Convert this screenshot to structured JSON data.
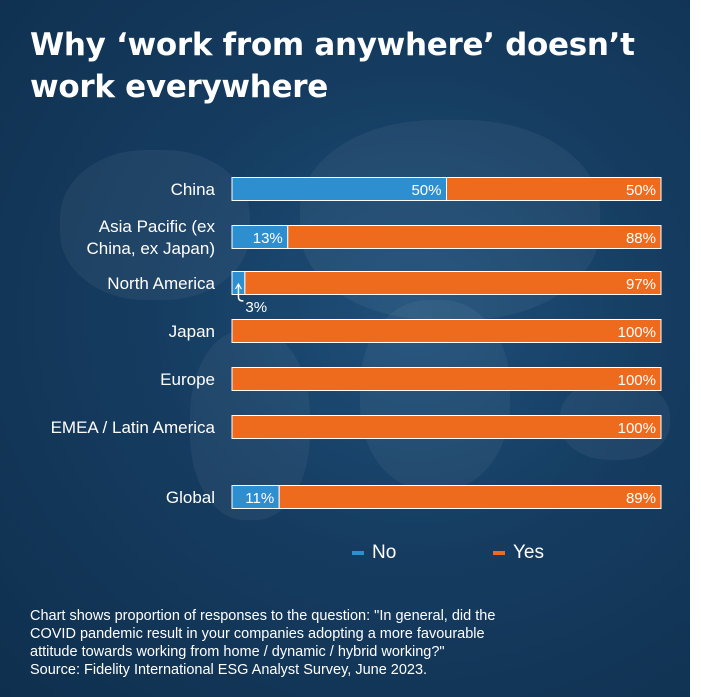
{
  "title": "Why ‘work from anywhere’ doesn’t work everywhere",
  "colors": {
    "no": "#2e8fd0",
    "yes": "#ee6b1d",
    "background": "#153c60"
  },
  "chart_data": {
    "type": "bar",
    "orientation": "horizontal",
    "stacked": true,
    "categories": [
      "China",
      "Asia Pacific (ex China, ex Japan)",
      "North America",
      "Japan",
      "Europe",
      "EMEA / Latin America",
      "Global"
    ],
    "series": [
      {
        "name": "No",
        "values": [
          50,
          13,
          3,
          0,
          0,
          0,
          11
        ],
        "labels": [
          "50%",
          "13%",
          "3%",
          "",
          "",
          "",
          "11%"
        ]
      },
      {
        "name": "Yes",
        "values": [
          50,
          88,
          97,
          100,
          100,
          100,
          89
        ],
        "labels": [
          "50%",
          "88%",
          "97%",
          "100%",
          "100%",
          "100%",
          "89%"
        ]
      }
    ],
    "xlim": [
      0,
      100
    ],
    "legend": "bottom"
  },
  "legend": {
    "no": "No",
    "yes": "Yes"
  },
  "footnote": [
    "Chart shows proportion of responses to the question: \"In general, did the",
    "COVID pandemic result in your companies adopting a more favourable",
    "attitude towards working from home / dynamic / hybrid working?\"",
    "Source: Fidelity International ESG Analyst Survey, June 2023."
  ]
}
